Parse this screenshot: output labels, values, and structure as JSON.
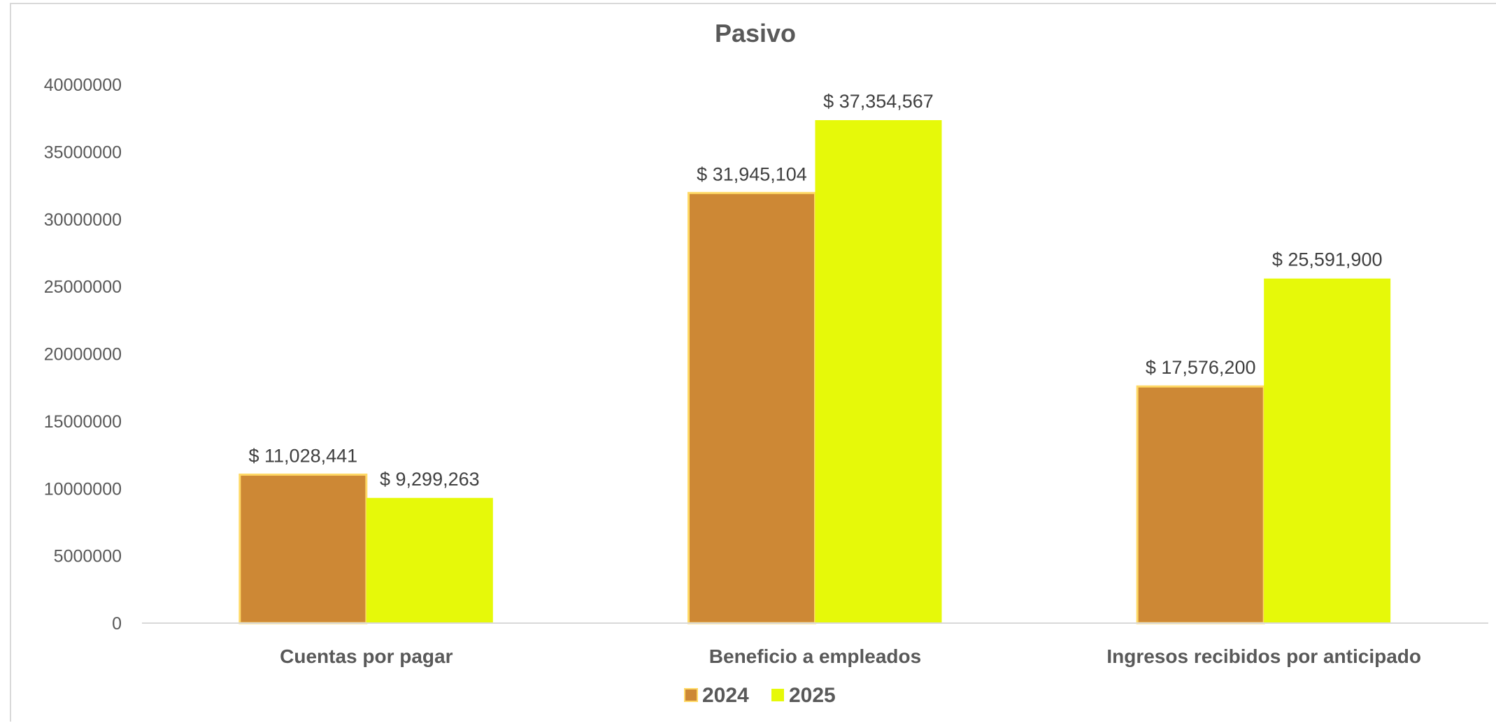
{
  "colors": {
    "series_2024": "#cd8835",
    "series_2024_border": "#ffd966",
    "series_2025": "#e6f909",
    "axis_line": "#d9d9d9",
    "text": "#595959"
  },
  "chart_data": {
    "type": "bar",
    "title": "Pasivo",
    "xlabel": "",
    "ylabel": "",
    "ylim": [
      0,
      40000000
    ],
    "yticks": [
      "0",
      "5000000",
      "10000000",
      "15000000",
      "20000000",
      "25000000",
      "30000000",
      "35000000",
      "40000000"
    ],
    "grid": false,
    "legend_position": "bottom",
    "categories": [
      "Cuentas por pagar",
      "Beneficio a empleados",
      "Ingresos recibidos por anticipado"
    ],
    "series": [
      {
        "name": "2024",
        "values": [
          11028441,
          31945104,
          17576200
        ],
        "labels": [
          "$ 11,028,441",
          "$ 31,945,104",
          "$ 17,576,200"
        ]
      },
      {
        "name": "2025",
        "values": [
          9299263,
          37354567,
          25591900
        ],
        "labels": [
          "$ 9,299,263",
          "$ 37,354,567",
          "$ 25,591,900"
        ]
      }
    ]
  }
}
